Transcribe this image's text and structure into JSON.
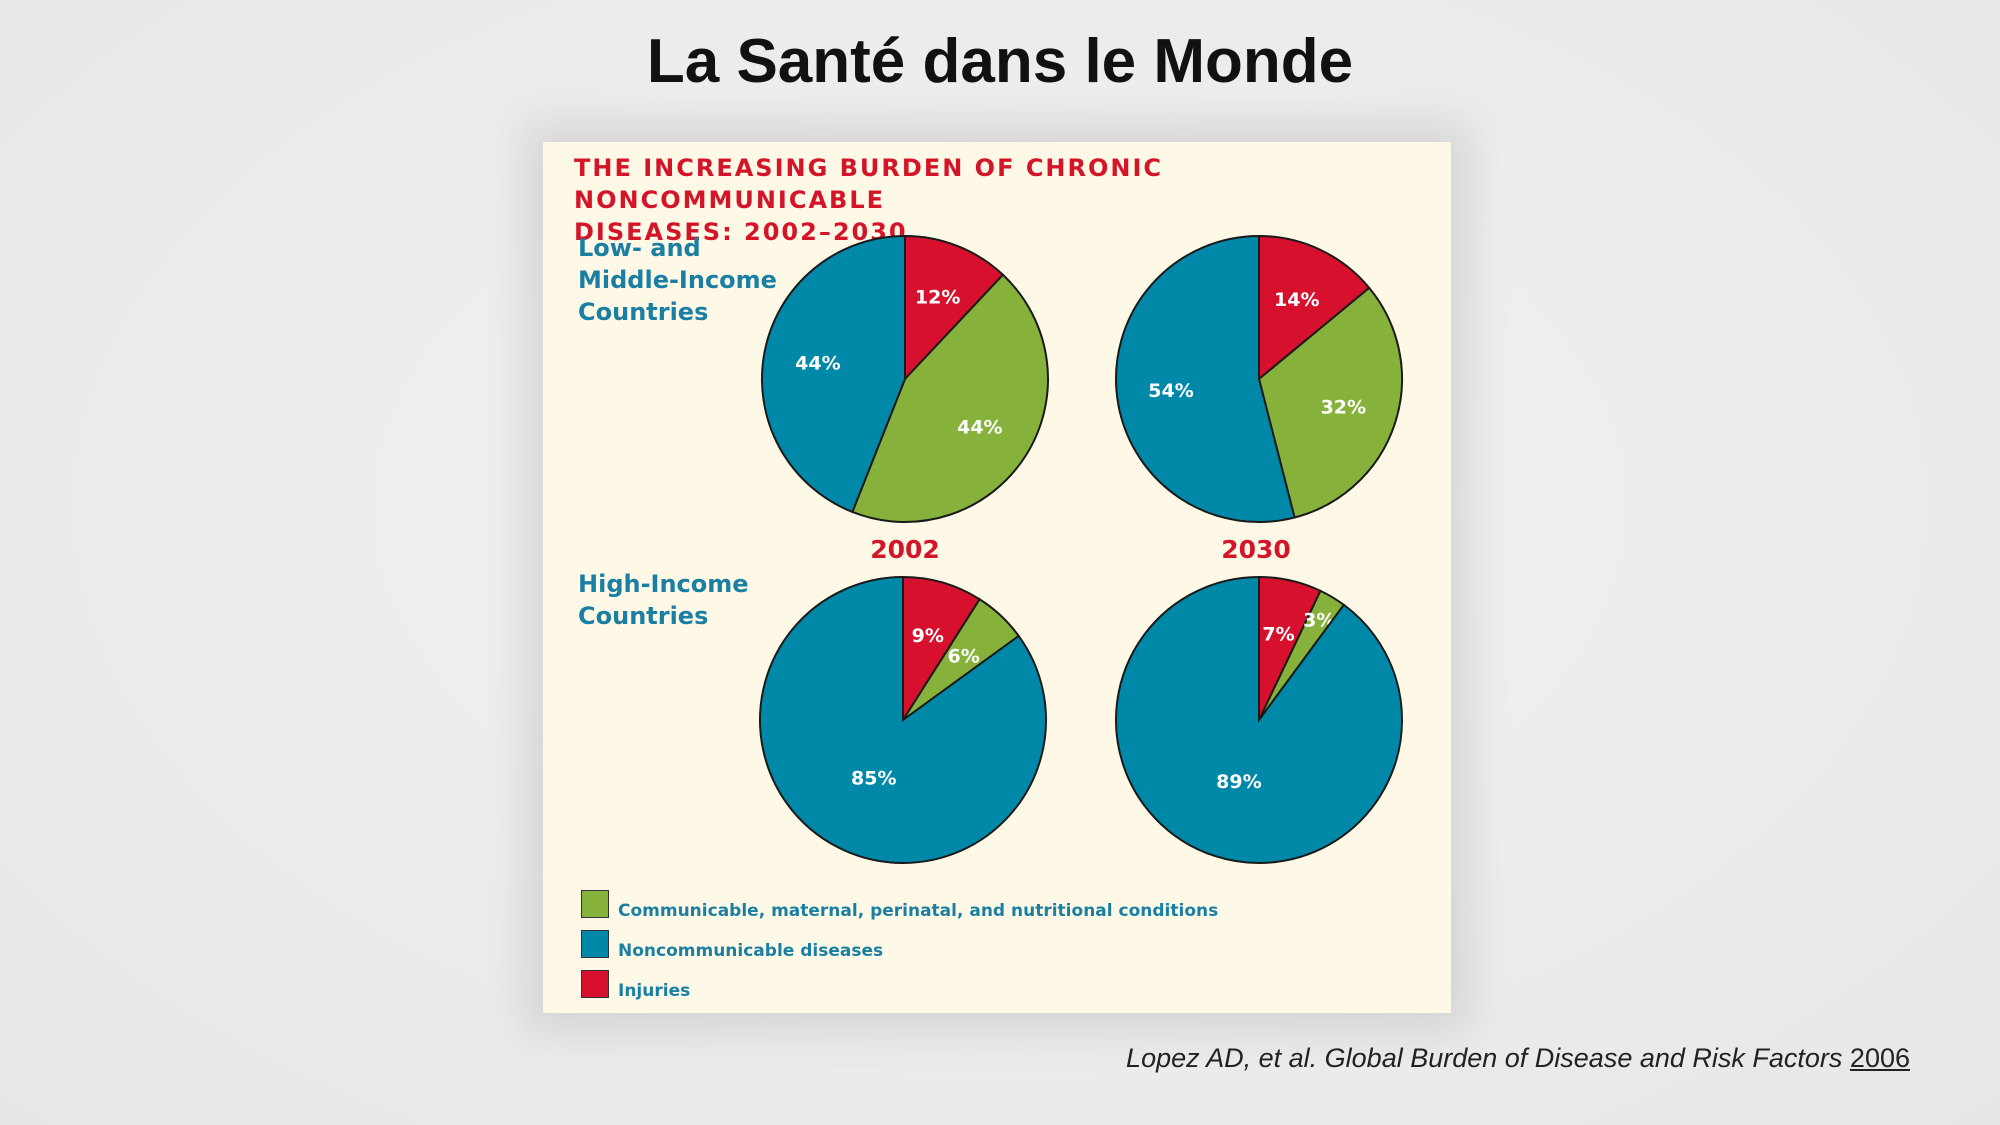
{
  "slide_title": "La Santé dans le Monde",
  "citation": {
    "text": "Lopez AD, et al. Global Burden of Disease and Risk Factors",
    "year": "2006"
  },
  "chart_data": {
    "type": "pie",
    "title_lines": [
      "THE INCREASING BURDEN OF CHRONIC NONCOMMUNICABLE",
      "DISEASES: 2002–2030"
    ],
    "years": [
      "2002",
      "2030"
    ],
    "categories": [
      {
        "key": "injuries",
        "label": "Injuries",
        "color": "#d7112d"
      },
      {
        "key": "communicable",
        "label": "Communicable, maternal, perinatal, and nutritional conditions",
        "color": "#86b13a"
      },
      {
        "key": "noncommunicable",
        "label": "Noncommunicable diseases",
        "color": "#0088a8"
      }
    ],
    "legend_order": [
      "communicable",
      "noncommunicable",
      "injuries"
    ],
    "groups": [
      {
        "label_lines": [
          "Low- and",
          "Middle-Income",
          "Countries"
        ],
        "pies": [
          {
            "year": "2002",
            "values": {
              "injuries": 12,
              "communicable": 44,
              "noncommunicable": 44
            },
            "labels": {
              "injuries": "12%",
              "communicable": "44%",
              "noncommunicable": "44%"
            }
          },
          {
            "year": "2030",
            "values": {
              "injuries": 14,
              "communicable": 32,
              "noncommunicable": 54
            },
            "labels": {
              "injuries": "14%",
              "communicable": "32%",
              "noncommunicable": "54%"
            }
          }
        ]
      },
      {
        "label_lines": [
          "High-Income",
          "Countries"
        ],
        "pies": [
          {
            "year": "2002",
            "values": {
              "injuries": 9,
              "communicable": 6,
              "noncommunicable": 85
            },
            "labels": {
              "injuries": "9%",
              "communicable": "6%",
              "noncommunicable": "85%"
            }
          },
          {
            "year": "2030",
            "values": {
              "injuries": 7,
              "communicable": 3,
              "noncommunicable": 89
            },
            "labels": {
              "injuries": "7%",
              "communicable": "3%",
              "noncommunicable": "89%"
            }
          }
        ]
      }
    ]
  }
}
